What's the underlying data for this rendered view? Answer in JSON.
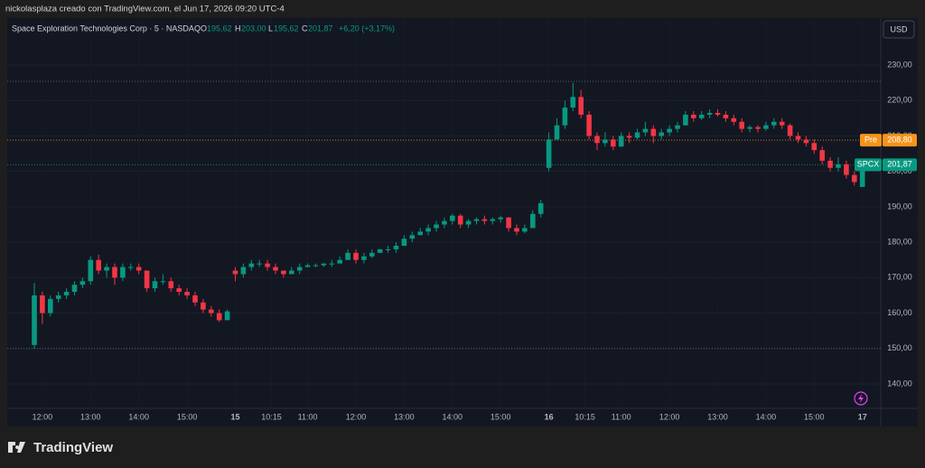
{
  "header": {
    "caption": "nickolasplaza creado con TradingView.com, el Jun 17, 2026 09:20 UTC-4"
  },
  "legend": {
    "symbol": "Space Exploration Technologies Corp · 5 · NASDAQ",
    "o_key": "O",
    "o": "195,62",
    "h_key": "H",
    "h": "203,00",
    "l_key": "L",
    "l": "195,62",
    "c_key": "C",
    "c": "201,87",
    "change": "+6,20 (+3,17%)"
  },
  "currency": "USD",
  "footer": {
    "brand": "TradingView"
  },
  "chart_data": {
    "type": "candlestick",
    "up_color": "#089981",
    "down_color": "#f23645",
    "xlim": [
      -3.37,
      105.28
    ],
    "ylim": [
      133.11,
      243.27
    ],
    "yticks": [
      {
        "value": 140,
        "label": "140,00"
      },
      {
        "value": 150,
        "label": "150,00"
      },
      {
        "value": 160,
        "label": "160,00"
      },
      {
        "value": 170,
        "label": "170,00"
      },
      {
        "value": 180,
        "label": "180,00"
      },
      {
        "value": 190,
        "label": "190,00"
      },
      {
        "value": 200,
        "label": "200,00"
      },
      {
        "value": 210,
        "label": "210,00"
      },
      {
        "value": 220,
        "label": "220,00"
      },
      {
        "value": 230,
        "label": "230,00"
      }
    ],
    "xticks": [
      {
        "value": 1,
        "label": "12:00"
      },
      {
        "value": 7,
        "label": "13:00"
      },
      {
        "value": 13,
        "label": "14:00"
      },
      {
        "value": 19,
        "label": "15:00"
      },
      {
        "value": 25,
        "label": "15"
      },
      {
        "value": 29.5,
        "label": "10:15"
      },
      {
        "value": 34,
        "label": "11:00"
      },
      {
        "value": 40,
        "label": "12:00"
      },
      {
        "value": 46,
        "label": "13:00"
      },
      {
        "value": 52,
        "label": "14:00"
      },
      {
        "value": 58,
        "label": "15:00"
      },
      {
        "value": 64,
        "label": "16"
      },
      {
        "value": 68.5,
        "label": "10:15"
      },
      {
        "value": 73,
        "label": "11:00"
      },
      {
        "value": 79,
        "label": "12:00"
      },
      {
        "value": 85,
        "label": "13:00"
      },
      {
        "value": 91,
        "label": "14:00"
      },
      {
        "value": 97,
        "label": "15:00"
      },
      {
        "value": 103,
        "label": "17"
      }
    ],
    "reference_lines": [
      225.4,
      150
    ],
    "price_tags": [
      {
        "name": "Pre",
        "value": 208.8,
        "label": "208,80",
        "color": "#f7931a"
      },
      {
        "name": "SPCX",
        "value": 201.87,
        "label": "201,87",
        "color": "#089981"
      }
    ],
    "candles": [
      [
        151,
        168.5,
        150,
        165
      ],
      [
        165,
        166,
        157,
        160
      ],
      [
        160,
        165,
        159,
        164
      ],
      [
        164,
        166,
        163,
        165
      ],
      [
        165,
        167,
        164,
        166
      ],
      [
        166,
        169,
        165,
        168
      ],
      [
        168,
        170,
        167,
        169
      ],
      [
        169,
        176,
        168,
        175
      ],
      [
        175,
        176.5,
        171,
        172
      ],
      [
        172,
        174,
        170,
        173
      ],
      [
        173,
        174,
        168,
        170
      ],
      [
        170,
        174,
        169,
        173
      ],
      [
        173,
        174,
        172,
        173
      ],
      [
        173,
        174,
        171,
        172
      ],
      [
        172,
        172,
        166,
        167
      ],
      [
        167,
        170,
        166,
        169
      ],
      [
        169,
        171,
        168,
        169
      ],
      [
        169,
        170,
        166,
        167
      ],
      [
        167,
        168,
        165,
        166
      ],
      [
        166,
        167,
        164,
        165
      ],
      [
        165,
        166,
        162,
        163
      ],
      [
        163,
        164,
        160,
        161
      ],
      [
        161,
        162,
        159,
        160
      ],
      [
        160,
        161,
        157.5,
        158
      ],
      [
        158,
        161,
        158,
        160.5
      ],
      [
        172,
        173,
        169,
        171
      ],
      [
        171,
        174,
        170,
        173
      ],
      [
        173,
        175,
        172,
        174
      ],
      [
        174,
        175,
        173,
        174
      ],
      [
        174,
        175,
        172,
        173
      ],
      [
        173,
        174,
        171,
        172
      ],
      [
        172,
        172,
        170,
        171
      ],
      [
        171,
        173,
        171,
        172
      ],
      [
        172,
        174,
        171,
        173
      ],
      [
        173,
        174,
        173,
        173.5
      ],
      [
        173.5,
        174,
        173,
        173.5
      ],
      [
        173.5,
        174,
        173,
        174
      ],
      [
        174,
        175,
        173,
        174
      ],
      [
        174,
        176,
        174,
        175
      ],
      [
        175,
        178,
        175,
        177
      ],
      [
        177,
        178,
        174,
        175
      ],
      [
        175,
        177,
        174,
        176
      ],
      [
        176,
        178,
        175.5,
        177
      ],
      [
        177,
        178,
        177,
        178
      ],
      [
        178,
        179,
        177,
        178
      ],
      [
        178,
        180,
        177,
        179
      ],
      [
        179,
        182,
        179,
        181
      ],
      [
        181,
        183,
        180,
        182
      ],
      [
        182,
        184,
        182,
        183
      ],
      [
        183,
        185,
        182,
        184
      ],
      [
        184,
        186,
        183,
        185
      ],
      [
        185,
        187,
        184,
        186
      ],
      [
        186,
        188,
        185,
        187.5
      ],
      [
        187.5,
        188,
        184,
        185
      ],
      [
        185,
        186.5,
        184,
        186
      ],
      [
        186,
        187,
        185,
        186.5
      ],
      [
        186.5,
        187.5,
        185,
        186
      ],
      [
        186,
        187,
        185,
        186.5
      ],
      [
        186.5,
        187.5,
        185.5,
        187
      ],
      [
        187,
        187,
        183,
        184
      ],
      [
        184,
        185,
        182,
        183
      ],
      [
        183,
        185,
        182.5,
        184
      ],
      [
        184,
        189,
        184,
        188
      ],
      [
        188,
        192,
        187,
        191
      ],
      [
        201,
        211,
        200,
        209
      ],
      [
        209,
        215,
        209,
        213
      ],
      [
        213,
        220,
        212,
        218
      ],
      [
        218,
        225,
        217,
        221
      ],
      [
        221,
        223,
        215,
        216
      ],
      [
        216,
        217,
        209,
        210
      ],
      [
        210,
        211,
        206,
        208
      ],
      [
        208,
        211,
        207,
        209
      ],
      [
        209,
        210,
        206,
        207
      ],
      [
        207,
        211,
        207,
        210
      ],
      [
        210,
        211,
        208,
        209.5
      ],
      [
        209.5,
        212,
        209,
        211
      ],
      [
        211,
        214,
        210,
        212
      ],
      [
        212,
        213,
        208,
        210
      ],
      [
        210,
        212,
        209,
        211
      ],
      [
        211,
        213,
        210,
        212
      ],
      [
        212,
        214,
        211,
        213
      ],
      [
        213,
        217,
        213,
        216
      ],
      [
        216,
        217,
        214,
        215
      ],
      [
        215,
        217,
        214.5,
        216
      ],
      [
        216,
        217.5,
        215,
        216.5
      ],
      [
        216.5,
        217.5,
        215.5,
        216
      ],
      [
        216,
        217,
        214,
        215
      ],
      [
        215,
        216,
        213,
        214
      ],
      [
        214,
        215,
        211,
        212
      ],
      [
        212,
        213,
        211,
        212.5
      ],
      [
        212.5,
        213,
        211,
        212
      ],
      [
        212,
        214,
        211.5,
        213
      ],
      [
        213,
        215,
        212,
        214
      ],
      [
        214,
        215,
        212,
        213
      ],
      [
        213,
        213.5,
        209,
        210
      ],
      [
        210,
        211,
        208,
        209
      ],
      [
        209,
        210,
        207,
        208
      ],
      [
        208,
        209,
        205,
        206
      ],
      [
        206,
        207,
        202,
        203
      ],
      [
        203,
        204,
        200,
        201
      ],
      [
        201,
        204,
        200,
        202
      ],
      [
        202,
        203,
        198,
        199
      ],
      [
        199,
        200,
        196,
        197
      ],
      [
        195.62,
        203,
        195.62,
        201.87
      ]
    ]
  }
}
